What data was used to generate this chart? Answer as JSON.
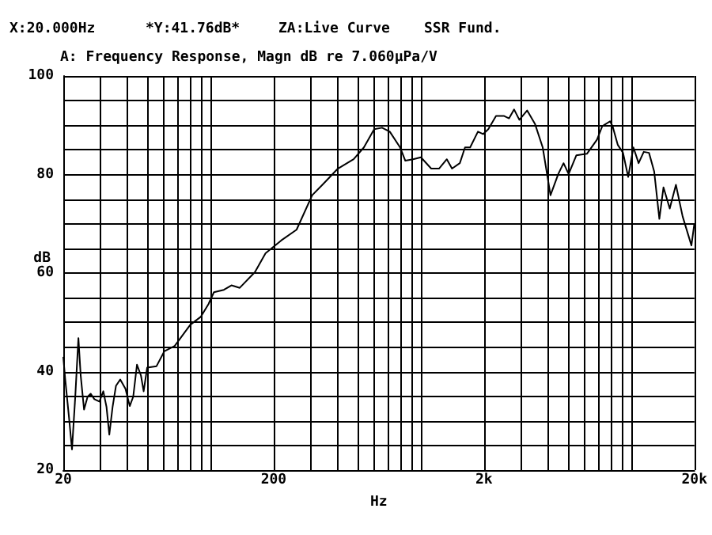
{
  "chart_data": {
    "type": "line",
    "title": "A: Frequency Response, Magn dB re 7.060µPa/V",
    "annotations": [
      "X:20.000Hz",
      "*Y:41.76dB*",
      "ZA:Live Curve",
      "SSR Fund."
    ],
    "xlabel": "Hz",
    "ylabel": "dB",
    "log": "x",
    "grid": true,
    "marker": "none",
    "line_style": "solid",
    "xlim": [
      20,
      20000
    ],
    "ylim": [
      20,
      100
    ],
    "xticks": [
      20,
      {
        "value": 30,
        "label": null
      },
      {
        "value": 40,
        "label": null
      },
      {
        "value": 50,
        "label": null
      },
      {
        "value": 60,
        "label": null
      },
      {
        "value": 70,
        "label": null
      },
      {
        "value": 80,
        "label": null
      },
      {
        "value": 90,
        "label": null
      },
      {
        "value": 100,
        "label": null
      },
      200,
      {
        "value": 300,
        "label": null
      },
      {
        "value": 400,
        "label": null
      },
      {
        "value": 500,
        "label": null
      },
      {
        "value": 600,
        "label": null
      },
      {
        "value": 700,
        "label": null
      },
      {
        "value": 800,
        "label": null
      },
      {
        "value": 900,
        "label": null
      },
      {
        "value": 1000,
        "label": null
      },
      {
        "value": 2000,
        "label": "2k"
      },
      {
        "value": 3000,
        "label": null
      },
      {
        "value": 4000,
        "label": null
      },
      {
        "value": 5000,
        "label": null
      },
      {
        "value": 6000,
        "label": null
      },
      {
        "value": 7000,
        "label": null
      },
      {
        "value": 8000,
        "label": null
      },
      {
        "value": 9000,
        "label": null
      },
      {
        "value": 10000,
        "label": null
      },
      {
        "value": 20000,
        "label": "20k"
      }
    ],
    "yticks": [
      20,
      {
        "value": 25,
        "label": null
      },
      {
        "value": 30,
        "label": null
      },
      {
        "value": 35,
        "label": null
      },
      40,
      {
        "value": 45,
        "label": null
      },
      {
        "value": 50,
        "label": null
      },
      {
        "value": 55,
        "label": null
      },
      60,
      {
        "value": 65,
        "label": null
      },
      {
        "value": 70,
        "label": null
      },
      {
        "value": 75,
        "label": null
      },
      80,
      {
        "value": 85,
        "label": null
      },
      {
        "value": 90,
        "label": null
      },
      {
        "value": 95,
        "label": null
      },
      100
    ],
    "series": [
      {
        "color": "#000000",
        "x": [
          20,
          20.4,
          21.3,
          22.0,
          22.8,
          23.6,
          24.2,
          25.1,
          26.1,
          27.0,
          28.1,
          29.7,
          31.0,
          32.1,
          33.1,
          34.3,
          35.6,
          37.3,
          39.5,
          41.4,
          43.0,
          44.8,
          46.8,
          48.2,
          50.1,
          55.5,
          60.4,
          67.7,
          80.3,
          90,
          98,
          104,
          116,
          126,
          138,
          163,
          183,
          217,
          257,
          305,
          341,
          404,
          480,
          537,
          601,
          655,
          713,
          798,
          845,
          920,
          1002,
          1122,
          1222,
          1331,
          1409,
          1535,
          1624,
          1718,
          1871,
          1980,
          2096,
          2281,
          2483,
          2630,
          2780,
          2944,
          3206,
          3492,
          3802,
          4140,
          4508,
          4776,
          5050,
          5496,
          6168,
          6890,
          7296,
          7946,
          8170,
          8650,
          9160,
          9690,
          10260,
          10860,
          11490,
          12170,
          12880,
          13630,
          14260,
          15270,
          16340,
          17580,
          19360,
          20000
        ],
        "values": [
          43,
          38.7,
          30.6,
          24.2,
          34.9,
          46.8,
          39.2,
          32.3,
          34.9,
          35.5,
          34.4,
          33.9,
          36.0,
          32.8,
          27.2,
          32.8,
          37.1,
          38.4,
          36.5,
          33.0,
          34.9,
          41.4,
          39.2,
          36.0,
          40.8,
          41.1,
          44.1,
          45.2,
          49.5,
          51.1,
          53.7,
          56.1,
          56.6,
          57.5,
          57.0,
          60.2,
          64.0,
          66.6,
          68.8,
          75.8,
          77.9,
          81.2,
          83.1,
          85.5,
          89.2,
          89.5,
          88.7,
          85.5,
          82.8,
          83.1,
          83.5,
          81.2,
          81.2,
          83.1,
          81.2,
          82.3,
          85.5,
          85.5,
          88.7,
          88.2,
          89.2,
          91.9,
          91.9,
          91.4,
          93.2,
          91.1,
          93.0,
          90.3,
          85.5,
          75.8,
          80.1,
          82.3,
          80.1,
          83.9,
          84.2,
          87.1,
          89.8,
          90.8,
          89.8,
          86.0,
          84.4,
          79.5,
          85.5,
          82.3,
          84.6,
          84.4,
          80.6,
          71.0,
          77.4,
          73.1,
          77.9,
          71.5,
          65.6,
          70.1
        ]
      }
    ]
  }
}
